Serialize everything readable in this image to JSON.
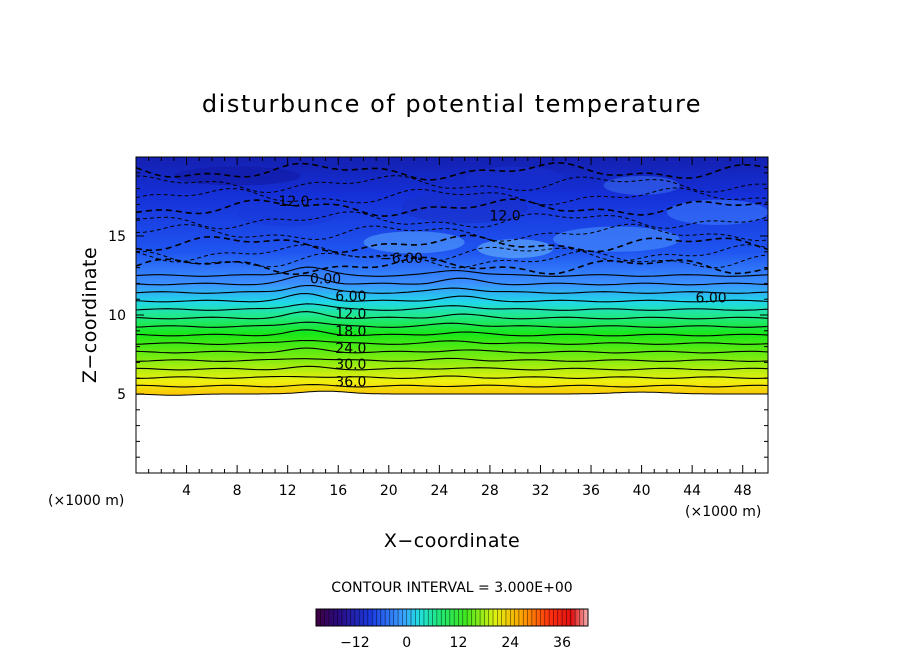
{
  "chart_data": {
    "type": "contour",
    "title": "disturbunce of potential temperature",
    "xlabel": "X−coordinate",
    "ylabel": "Z−coordinate",
    "x_unit_left": "(×1000 m)",
    "x_unit_right": "(×1000 m)",
    "xlim": [
      0,
      50
    ],
    "ylim": [
      0,
      20
    ],
    "x_ticks": [
      4,
      8,
      12,
      16,
      20,
      24,
      28,
      32,
      36,
      40,
      44,
      48
    ],
    "x_tick_labels": [
      "4",
      "8",
      "12",
      "16",
      "20",
      "24",
      "28",
      "32",
      "36",
      "40",
      "44",
      "48"
    ],
    "y_ticks": [
      5,
      10,
      15
    ],
    "y_tick_labels": [
      "5",
      "10",
      "15"
    ],
    "contour_interval_text": "CONTOUR INTERVAL = 3.000E+00",
    "contour_interval": 3,
    "negative_contours_dashed": true,
    "terrain_top_km": 5,
    "contour_labels": [
      {
        "text": "12.0",
        "x": 12.5,
        "z": 17.2
      },
      {
        "text": "12.0",
        "x": 29.2,
        "z": 16.3
      },
      {
        "text": "−6.00",
        "x": 21.0,
        "z": 13.6
      },
      {
        "text": "0.00",
        "x": 15.0,
        "z": 12.3
      },
      {
        "text": "6.00",
        "x": 17.0,
        "z": 11.2
      },
      {
        "text": "6.00",
        "x": 45.5,
        "z": 11.1
      },
      {
        "text": "12.0",
        "x": 17.0,
        "z": 10.1
      },
      {
        "text": "18.0",
        "x": 17.0,
        "z": 9.0
      },
      {
        "text": "24.0",
        "x": 17.0,
        "z": 7.9
      },
      {
        "text": "30.0",
        "x": 17.0,
        "z": 6.9
      },
      {
        "text": "36.0",
        "x": 17.0,
        "z": 5.8
      }
    ],
    "colorbar": {
      "min": -21,
      "max": 42,
      "ticks": [
        -12,
        0,
        12,
        24,
        36
      ],
      "tick_labels": [
        "−12",
        "0",
        "12",
        "24",
        "36"
      ]
    },
    "colors": {
      "frame": "#000000",
      "terrain": "#ffffff"
    }
  }
}
